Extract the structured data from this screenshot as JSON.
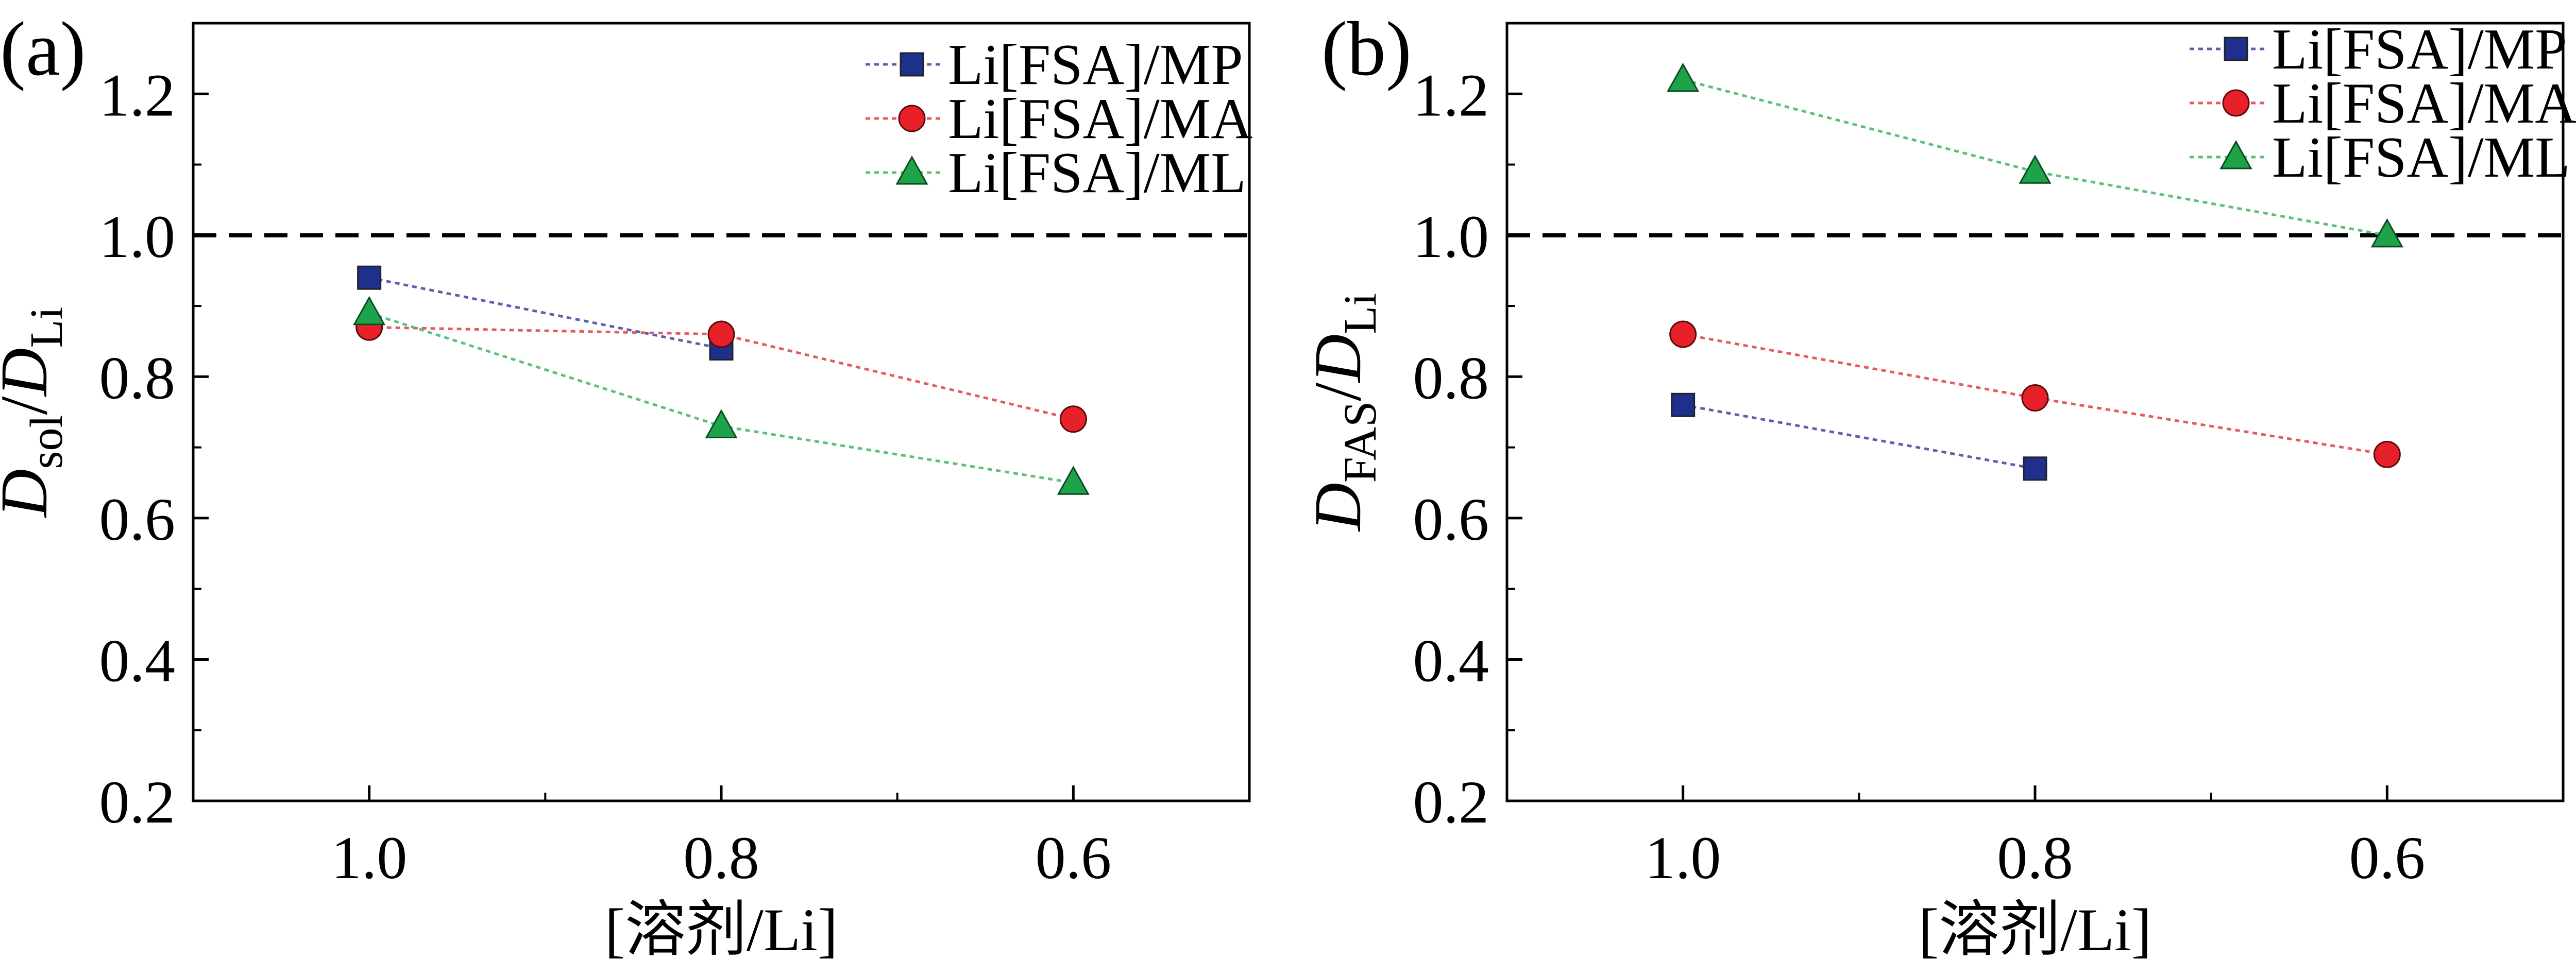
{
  "chart_data": [
    {
      "panel_label": "(a)",
      "type": "line",
      "categories": [
        "1.0",
        "0.8",
        "0.6"
      ],
      "x": [
        1.0,
        0.8,
        0.6
      ],
      "xlabel": "[溶剂/Li]",
      "ylabel_main": "D",
      "ylabel_sub": "sol",
      "ylabel_sep": "/",
      "ylabel_main2": "D",
      "ylabel_sub2": "Li",
      "ylim": [
        0.2,
        1.3
      ],
      "xlim": [
        1.1,
        0.5
      ],
      "x_reversed": true,
      "yticks": [
        "0.2",
        "0.4",
        "0.6",
        "0.8",
        "1.0",
        "1.2"
      ],
      "reference_line": 1.0,
      "legend_position": "top-right",
      "grid": false,
      "series": [
        {
          "name": "Li[FSA]/MP",
          "values": [
            0.94,
            0.84,
            null
          ],
          "marker": "square",
          "color": "#1f2f8c",
          "line_color": "#5a5fb0"
        },
        {
          "name": "Li[FSA]/MA",
          "values": [
            0.87,
            0.86,
            0.74
          ],
          "marker": "circle",
          "color": "#e8202a",
          "line_color": "#e35a5f"
        },
        {
          "name": "Li[FSA]/ML",
          "values": [
            0.89,
            0.73,
            0.65
          ],
          "marker": "triangle",
          "color": "#1ea34a",
          "line_color": "#5cbf7c"
        }
      ]
    },
    {
      "panel_label": "(b)",
      "type": "line",
      "categories": [
        "1.0",
        "0.8",
        "0.6"
      ],
      "x": [
        1.0,
        0.8,
        0.6
      ],
      "xlabel": "[溶剂/Li]",
      "ylabel_main": "D",
      "ylabel_sub": "FAS",
      "ylabel_sep": "/",
      "ylabel_main2": "D",
      "ylabel_sub2": "Li",
      "ylim": [
        0.2,
        1.3
      ],
      "xlim": [
        1.1,
        0.5
      ],
      "x_reversed": true,
      "yticks": [
        "0.2",
        "0.4",
        "0.6",
        "0.8",
        "1.0",
        "1.2"
      ],
      "reference_line": 1.0,
      "legend_position": "top-right",
      "grid": false,
      "series": [
        {
          "name": "Li[FSA]/MP",
          "values": [
            0.76,
            0.67,
            null
          ],
          "marker": "square",
          "color": "#1f2f8c",
          "line_color": "#5a5fb0"
        },
        {
          "name": "Li[FSA]/MA",
          "values": [
            0.86,
            0.77,
            0.69
          ],
          "marker": "circle",
          "color": "#e8202a",
          "line_color": "#e35a5f"
        },
        {
          "name": "Li[FSA]/ML",
          "values": [
            1.22,
            1.09,
            1.0
          ],
          "marker": "triangle",
          "color": "#1ea34a",
          "line_color": "#5cbf7c"
        }
      ]
    }
  ]
}
